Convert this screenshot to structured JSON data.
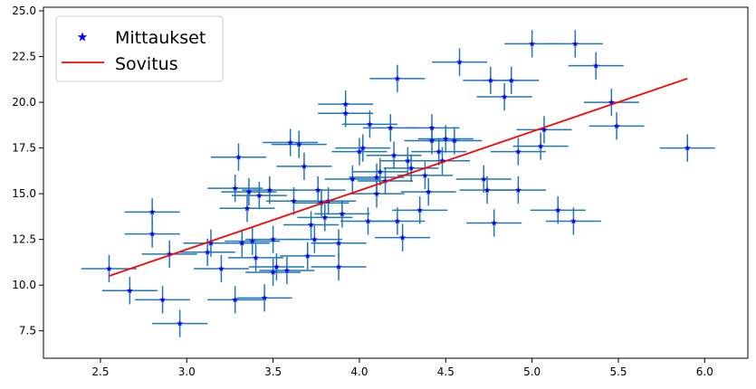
{
  "chart_data": {
    "type": "scatter",
    "title": "",
    "xlabel": "",
    "ylabel": "",
    "xlim": [
      2.17,
      6.25
    ],
    "ylim": [
      6.0,
      25.2
    ],
    "grid": false,
    "legend_placement": "top-left",
    "x_ticks": [
      2.5,
      3.0,
      3.5,
      4.0,
      4.5,
      5.0,
      5.5,
      6.0
    ],
    "x_tick_labels": [
      "2.5",
      "3.0",
      "3.5",
      "4.0",
      "4.5",
      "5.0",
      "5.5",
      "6.0"
    ],
    "y_ticks": [
      7.5,
      10.0,
      12.5,
      15.0,
      17.5,
      20.0,
      22.5,
      25.0
    ],
    "y_tick_labels": [
      "7.5",
      "10.0",
      "12.5",
      "15.0",
      "17.5",
      "20.0",
      "22.5",
      "25.0"
    ],
    "errorbar_color": "#1f77b4",
    "series": [
      {
        "name": "Mittaukset",
        "kind": "points",
        "marker": "star",
        "color": "#0000ff",
        "x_err": 0.16,
        "y_err": 0.75,
        "points": [
          [
            2.55,
            10.9
          ],
          [
            2.67,
            9.7
          ],
          [
            2.8,
            14.0
          ],
          [
            2.8,
            12.8
          ],
          [
            2.86,
            9.2
          ],
          [
            2.96,
            7.9
          ],
          [
            2.9,
            11.7
          ],
          [
            3.12,
            11.8
          ],
          [
            3.14,
            12.3
          ],
          [
            3.2,
            10.9
          ],
          [
            3.28,
            15.3
          ],
          [
            3.28,
            9.2
          ],
          [
            3.3,
            17.0
          ],
          [
            3.32,
            12.3
          ],
          [
            3.35,
            14.2
          ],
          [
            3.36,
            15.1
          ],
          [
            3.38,
            12.4
          ],
          [
            3.4,
            11.5
          ],
          [
            3.42,
            14.9
          ],
          [
            3.45,
            9.3
          ],
          [
            3.48,
            15.2
          ],
          [
            3.5,
            12.5
          ],
          [
            3.5,
            10.7
          ],
          [
            3.52,
            11.0
          ],
          [
            3.58,
            10.8
          ],
          [
            3.6,
            17.8
          ],
          [
            3.62,
            14.6
          ],
          [
            3.65,
            17.7
          ],
          [
            3.68,
            16.5
          ],
          [
            3.7,
            11.6
          ],
          [
            3.72,
            13.3
          ],
          [
            3.74,
            12.5
          ],
          [
            3.76,
            15.2
          ],
          [
            3.78,
            14.5
          ],
          [
            3.8,
            13.7
          ],
          [
            3.82,
            14.6
          ],
          [
            3.88,
            12.3
          ],
          [
            3.88,
            11.0
          ],
          [
            3.9,
            13.9
          ],
          [
            3.92,
            19.9
          ],
          [
            3.92,
            19.4
          ],
          [
            3.96,
            15.8
          ],
          [
            4.0,
            17.3
          ],
          [
            4.02,
            17.5
          ],
          [
            4.05,
            13.5
          ],
          [
            4.06,
            18.8
          ],
          [
            4.1,
            15.0
          ],
          [
            4.1,
            15.9
          ],
          [
            4.12,
            16.2
          ],
          [
            4.15,
            15.7
          ],
          [
            4.18,
            18.6
          ],
          [
            4.2,
            17.1
          ],
          [
            4.22,
            13.5
          ],
          [
            4.22,
            21.3
          ],
          [
            4.25,
            12.6
          ],
          [
            4.28,
            16.8
          ],
          [
            4.3,
            16.4
          ],
          [
            4.35,
            14.1
          ],
          [
            4.38,
            16.0
          ],
          [
            4.4,
            15.1
          ],
          [
            4.42,
            18.6
          ],
          [
            4.42,
            17.9
          ],
          [
            4.46,
            17.3
          ],
          [
            4.48,
            16.8
          ],
          [
            4.5,
            18.0
          ],
          [
            4.55,
            17.9
          ],
          [
            4.58,
            22.2
          ],
          [
            4.72,
            15.8
          ],
          [
            4.74,
            15.2
          ],
          [
            4.76,
            21.2
          ],
          [
            4.78,
            13.4
          ],
          [
            4.84,
            20.3
          ],
          [
            4.88,
            21.2
          ],
          [
            4.92,
            17.3
          ],
          [
            4.92,
            15.2
          ],
          [
            5.0,
            23.2
          ],
          [
            5.05,
            17.6
          ],
          [
            5.07,
            18.5
          ],
          [
            5.15,
            14.1
          ],
          [
            5.24,
            13.5
          ],
          [
            5.25,
            23.2
          ],
          [
            5.37,
            22.0
          ],
          [
            5.46,
            20.0
          ],
          [
            5.49,
            18.7
          ],
          [
            5.9,
            17.5
          ]
        ]
      },
      {
        "name": "Sovitus",
        "kind": "line",
        "color": "#ff0000",
        "x": [
          2.55,
          5.9
        ],
        "y": [
          10.5,
          21.3
        ]
      }
    ]
  }
}
